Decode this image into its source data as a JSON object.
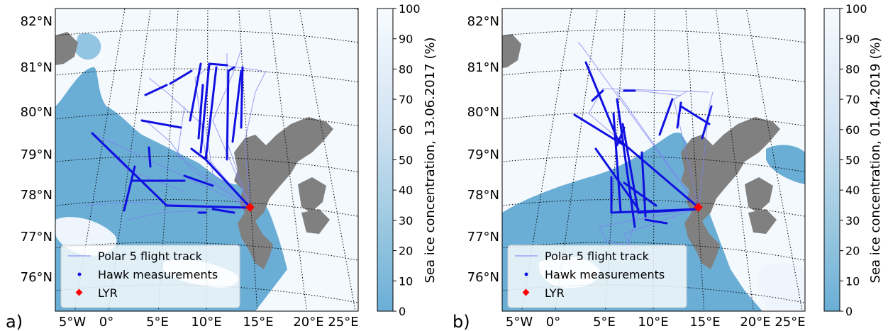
{
  "panels": [
    {
      "letter": "a)",
      "colorbar_label": "Sea ice concentration, 13.06.2017 (%)",
      "legend": {
        "track": "Polar 5 flight track",
        "hawk": "Hawk measurements",
        "lyr": "LYR"
      }
    },
    {
      "letter": "b)",
      "colorbar_label": "Sea ice concentration, 01.04.2019 (%)",
      "legend": {
        "track": "Polar 5 flight track",
        "hawk": "Hawk measurements",
        "lyr": "LYR"
      }
    }
  ],
  "lat_labels": [
    "82°N",
    "81°N",
    "80°N",
    "79°N",
    "78°N",
    "77°N",
    "76°N"
  ],
  "lon_labels": [
    "5°W",
    "0°",
    "5°E",
    "10°E",
    "15°E",
    "20°E",
    "25°E"
  ],
  "colorbar_ticks": [
    "100",
    "90",
    "80",
    "70",
    "60",
    "50",
    "40",
    "30",
    "20",
    "10",
    "0"
  ],
  "colors": {
    "open_water": "#6aaed6",
    "sea_ice": "#f4f9fe",
    "land": "#808080",
    "track": "#7b7ff0",
    "hawk": "#1010e0",
    "lyr_marker": "#ff0000"
  }
}
